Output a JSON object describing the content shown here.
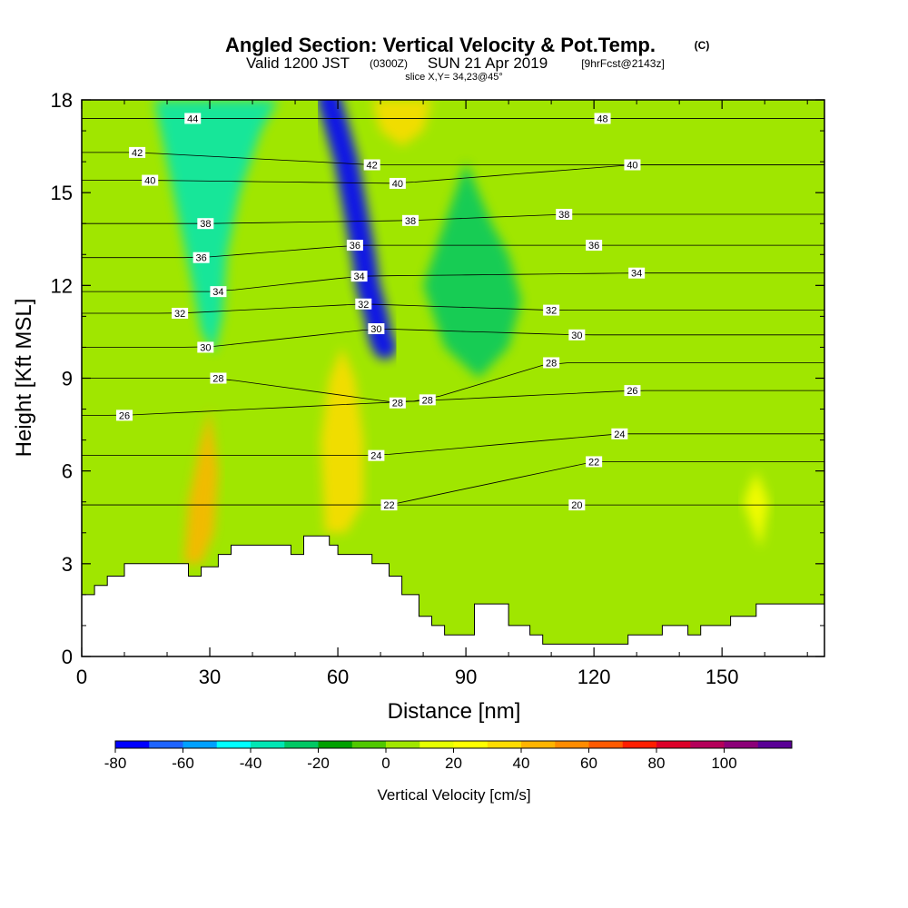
{
  "chart_data": {
    "type": "heatmap",
    "title": "Angled Section: Vertical Velocity & Pot.Temp.",
    "title_unit": "(C)",
    "subtitle_valid": "Valid 1200 JST",
    "subtitle_utc": "(0300Z)",
    "subtitle_date": "SUN 21 Apr 2019",
    "subtitle_fcst": "[9hrFcst@2143z]",
    "slice_label": "slice X,Y= 34,23@45°",
    "xlabel": "Distance [nm]",
    "ylabel": "Height [Kft MSL]",
    "xlim": [
      0,
      174
    ],
    "ylim": [
      0,
      18
    ],
    "x_ticks": [
      0,
      30,
      60,
      90,
      120,
      150
    ],
    "y_ticks": [
      0,
      3,
      6,
      9,
      12,
      15,
      18
    ],
    "colorbar": {
      "label": "Vertical Velocity [cm/s]",
      "tick_values": [
        -80,
        -60,
        -40,
        -20,
        0,
        20,
        40,
        60,
        80,
        100
      ],
      "levels": [
        -80,
        -70,
        -60,
        -50,
        -40,
        -30,
        -20,
        -10,
        0,
        10,
        20,
        30,
        40,
        50,
        60,
        70,
        80,
        90,
        100,
        110
      ],
      "colors": [
        "#0000ff",
        "#1e64ff",
        "#00a0ff",
        "#00ffff",
        "#00e6b4",
        "#00c864",
        "#00a000",
        "#50c800",
        "#a0e600",
        "#e6ff00",
        "#ffff00",
        "#ffdc00",
        "#ffb400",
        "#ff8c00",
        "#ff5a00",
        "#ff1e00",
        "#dc0028",
        "#b4005a",
        "#8c0078",
        "#5a0096"
      ]
    },
    "background_color": "#a0e600",
    "terrain": [
      [
        0,
        2
      ],
      [
        3,
        2
      ],
      [
        3,
        2.3
      ],
      [
        6,
        2.3
      ],
      [
        6,
        2.6
      ],
      [
        10,
        2.6
      ],
      [
        10,
        3
      ],
      [
        25,
        3
      ],
      [
        25,
        2.6
      ],
      [
        28,
        2.6
      ],
      [
        28,
        2.9
      ],
      [
        32,
        2.9
      ],
      [
        32,
        3.3
      ],
      [
        35,
        3.3
      ],
      [
        35,
        3.6
      ],
      [
        49,
        3.6
      ],
      [
        49,
        3.3
      ],
      [
        52,
        3.3
      ],
      [
        52,
        3.9
      ],
      [
        58,
        3.9
      ],
      [
        58,
        3.6
      ],
      [
        60,
        3.6
      ],
      [
        60,
        3.3
      ],
      [
        68,
        3.3
      ],
      [
        68,
        3.0
      ],
      [
        72,
        3.0
      ],
      [
        72,
        2.6
      ],
      [
        75,
        2.6
      ],
      [
        75,
        2.0
      ],
      [
        79,
        2.0
      ],
      [
        79,
        1.3
      ],
      [
        82,
        1.3
      ],
      [
        82,
        1.0
      ],
      [
        85,
        1.0
      ],
      [
        85,
        0.7
      ],
      [
        92,
        0.7
      ],
      [
        92,
        1.7
      ],
      [
        100,
        1.7
      ],
      [
        100,
        1.0
      ],
      [
        105,
        1.0
      ],
      [
        105,
        0.7
      ],
      [
        108,
        0.7
      ],
      [
        108,
        0.4
      ],
      [
        128,
        0.4
      ],
      [
        128,
        0.7
      ],
      [
        136,
        0.7
      ],
      [
        136,
        1.0
      ],
      [
        142,
        1.0
      ],
      [
        142,
        0.7
      ],
      [
        145,
        0.7
      ],
      [
        145,
        1.0
      ],
      [
        152,
        1.0
      ],
      [
        152,
        1.3
      ],
      [
        158,
        1.3
      ],
      [
        158,
        1.7
      ],
      [
        174,
        1.7
      ]
    ],
    "series": [
      {
        "name": "w_down_tilted_core",
        "value": -80,
        "path": [
          [
            58,
            18
          ],
          [
            60,
            17
          ],
          [
            62,
            16
          ],
          [
            64,
            14.5
          ],
          [
            66,
            13
          ],
          [
            67,
            12
          ],
          [
            69,
            11
          ],
          [
            70,
            10.3
          ],
          [
            71,
            10
          ]
        ]
      },
      {
        "name": "w_down_left_band",
        "value": -35,
        "path": [
          [
            17,
            18
          ],
          [
            20,
            16
          ],
          [
            23,
            14
          ],
          [
            26,
            12
          ],
          [
            28,
            10.5
          ],
          [
            31,
            9.8
          ],
          [
            33,
            11
          ],
          [
            34,
            13
          ],
          [
            37,
            15
          ],
          [
            42,
            17
          ],
          [
            46,
            18
          ]
        ]
      },
      {
        "name": "w_down_right",
        "value": -25,
        "path": [
          [
            90,
            16
          ],
          [
            96,
            14
          ],
          [
            100,
            13
          ],
          [
            103,
            11.5
          ],
          [
            100,
            10
          ],
          [
            93,
            9
          ],
          [
            85,
            10
          ],
          [
            80,
            12
          ]
        ]
      },
      {
        "name": "w_up_mid_column",
        "value": 35,
        "path": [
          [
            57,
            4
          ],
          [
            56,
            7
          ],
          [
            58,
            9
          ],
          [
            61,
            10
          ],
          [
            64,
            9
          ],
          [
            66,
            7
          ],
          [
            66,
            5
          ],
          [
            62,
            4
          ]
        ]
      },
      {
        "name": "w_up_left_column",
        "value": 45,
        "path": [
          [
            24,
            3
          ],
          [
            25,
            5
          ],
          [
            28,
            7
          ],
          [
            30,
            8
          ],
          [
            32,
            6
          ],
          [
            31,
            4
          ],
          [
            28,
            3
          ]
        ]
      },
      {
        "name": "w_up_top",
        "value": 35,
        "path": [
          [
            68,
            18
          ],
          [
            70,
            17
          ],
          [
            75,
            16.5
          ],
          [
            80,
            17
          ],
          [
            82,
            18
          ]
        ]
      },
      {
        "name": "w_up_right_blob",
        "value": 20,
        "path": [
          [
            155,
            5
          ],
          [
            158,
            6
          ],
          [
            161,
            5
          ],
          [
            159,
            3.5
          ]
        ]
      }
    ],
    "isotherms": [
      {
        "value": 20,
        "label_at": [
          116,
          4.9
        ]
      },
      {
        "value": 22,
        "label_at": [
          72,
          4.9
        ]
      },
      {
        "value": 22,
        "label_at": [
          120,
          6.3
        ]
      },
      {
        "value": 24,
        "label_at": [
          69,
          6.5
        ]
      },
      {
        "value": 24,
        "label_at": [
          126,
          7.2
        ]
      },
      {
        "value": 26,
        "label_at": [
          10,
          7.8
        ]
      },
      {
        "value": 26,
        "label_at": [
          129,
          8.6
        ]
      },
      {
        "value": 28,
        "label_at": [
          32,
          9.0
        ]
      },
      {
        "value": 28,
        "label_at": [
          74,
          8.2
        ]
      },
      {
        "value": 28,
        "label_at": [
          81,
          8.3
        ]
      },
      {
        "value": 28,
        "label_at": [
          110,
          9.5
        ]
      },
      {
        "value": 30,
        "label_at": [
          29,
          10.0
        ]
      },
      {
        "value": 30,
        "label_at": [
          69,
          10.6
        ]
      },
      {
        "value": 30,
        "label_at": [
          116,
          10.4
        ]
      },
      {
        "value": 32,
        "label_at": [
          23,
          11.1
        ]
      },
      {
        "value": 32,
        "label_at": [
          66,
          11.4
        ]
      },
      {
        "value": 32,
        "label_at": [
          110,
          11.2
        ]
      },
      {
        "value": 34,
        "label_at": [
          32,
          11.8
        ]
      },
      {
        "value": 34,
        "label_at": [
          65,
          12.3
        ]
      },
      {
        "value": 34,
        "label_at": [
          130,
          12.4
        ]
      },
      {
        "value": 36,
        "label_at": [
          28,
          12.9
        ]
      },
      {
        "value": 36,
        "label_at": [
          64,
          13.3
        ]
      },
      {
        "value": 36,
        "label_at": [
          120,
          13.3
        ]
      },
      {
        "value": 38,
        "label_at": [
          29,
          14.0
        ]
      },
      {
        "value": 38,
        "label_at": [
          77,
          14.1
        ]
      },
      {
        "value": 38,
        "label_at": [
          113,
          14.3
        ]
      },
      {
        "value": 40,
        "label_at": [
          16,
          15.4
        ]
      },
      {
        "value": 40,
        "label_at": [
          74,
          15.3
        ]
      },
      {
        "value": 40,
        "label_at": [
          129,
          15.9
        ]
      },
      {
        "value": 42,
        "label_at": [
          13,
          16.3
        ]
      },
      {
        "value": 42,
        "label_at": [
          68,
          15.9
        ]
      },
      {
        "value": 44,
        "label_at": [
          26,
          17.4
        ]
      },
      {
        "value": 48,
        "label_at": [
          122,
          17.4
        ]
      }
    ]
  }
}
